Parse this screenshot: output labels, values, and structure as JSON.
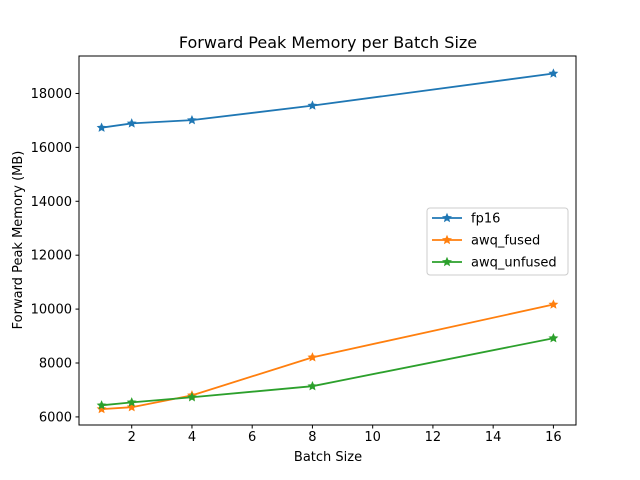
{
  "chart_data": {
    "type": "line",
    "title": "Forward Peak Memory per Batch Size",
    "xlabel": "Batch Size",
    "ylabel": "Forward Peak Memory (MB)",
    "x": [
      1,
      2,
      4,
      8,
      16
    ],
    "series": [
      {
        "name": "fp16",
        "color": "#1f77b4",
        "marker": "star",
        "values": [
          16730,
          16890,
          17010,
          17550,
          18740
        ]
      },
      {
        "name": "awq_fused",
        "color": "#ff7f0e",
        "marker": "star",
        "values": [
          6290,
          6360,
          6800,
          8210,
          10170
        ]
      },
      {
        "name": "awq_unfused",
        "color": "#2ca02c",
        "marker": "star",
        "values": [
          6430,
          6540,
          6730,
          7140,
          8920
        ]
      }
    ],
    "xlim": [
      0.25,
      16.75
    ],
    "ylim": [
      5700,
      19390
    ],
    "xticks": [
      2,
      4,
      6,
      8,
      10,
      12,
      14,
      16
    ],
    "yticks": [
      6000,
      8000,
      10000,
      12000,
      14000,
      16000,
      18000
    ],
    "grid": false,
    "legend": {
      "position": "center-right",
      "entries": [
        "fp16",
        "awq_fused",
        "awq_unfused"
      ]
    },
    "colors": {
      "axis": "#000000",
      "legend_border": "#cccccc",
      "background": "#ffffff"
    }
  }
}
